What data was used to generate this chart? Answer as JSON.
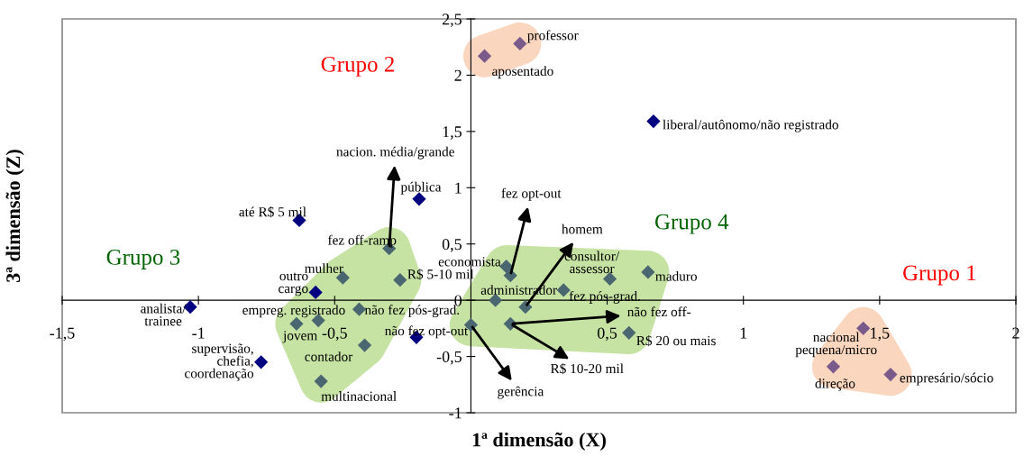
{
  "chart_data": {
    "type": "scatter",
    "xlabel": "1ª dimensão (X)",
    "ylabel": "3ª dimensão (Z)",
    "xlim": [
      -1.5,
      2
    ],
    "ylim": [
      -1,
      2.5
    ],
    "xticks": [
      {
        "value": -1.5,
        "label": "-1,5"
      },
      -1,
      {
        "value": -0.5,
        "label": "-0,5"
      },
      {
        "value": 0.5,
        "label": "0,5"
      },
      1,
      {
        "value": 1.5,
        "label": "1,5"
      },
      2
    ],
    "yticks": [
      -1,
      {
        "value": -0.5,
        "label": "-0,5"
      },
      0,
      {
        "value": 0.5,
        "label": "0,5"
      },
      1,
      {
        "value": 1.5,
        "label": "1,5"
      },
      2,
      {
        "value": 2.5,
        "label": "2,5"
      }
    ],
    "grid": false,
    "marker": "diamond",
    "legend": false,
    "series": [
      {
        "color": "#7a5a8a",
        "x": [
          1.44,
          1.33,
          1.54
        ],
        "values": [
          -0.25,
          -0.59,
          -0.66
        ],
        "value_labels": [
          "nacional\npequena/micro",
          "direção",
          "empresário/sócio"
        ]
      },
      {
        "color": "#7a5a8a",
        "x": [
          0.18,
          0.05
        ],
        "values": [
          2.28,
          2.17
        ],
        "value_labels": [
          "professor",
          "aposentado"
        ]
      },
      {
        "color": "#000080",
        "x": [
          0.67,
          -0.63,
          -0.19,
          -0.57,
          -1.03,
          -0.77,
          -0.2
        ],
        "values": [
          1.59,
          0.71,
          0.9,
          0.07,
          -0.06,
          -0.55,
          -0.33
        ],
        "value_labels": [
          "liberal/autônomo/não registrado",
          "até R$ 5 mil",
          "pública",
          "outro\ncargo",
          "analista/\ntrainee",
          "supervisão,\nchefia,\ncoordenação",
          "não fez opt-out"
        ]
      },
      {
        "color": "#4a6670",
        "x": [
          -0.3,
          -0.47,
          -0.26,
          -0.64,
          -0.56,
          -0.41,
          -0.39,
          -0.55
        ],
        "values": [
          0.46,
          0.2,
          0.18,
          -0.21,
          -0.18,
          -0.08,
          -0.4,
          -0.72
        ],
        "value_labels": [
          "fez off-ramp",
          "mulher",
          "R$ 5-10 mil",
          "empreg. registrado",
          "jovem",
          "não fez pós-grad.",
          "contador",
          "multinacional"
        ]
      },
      {
        "color": "#4a6670",
        "x": [
          0.13,
          0.145,
          0.09,
          0.34,
          0.2,
          0.145,
          0.51,
          0.65,
          0.58,
          0.0
        ],
        "values": [
          0.3,
          0.22,
          0.0,
          0.09,
          -0.06,
          -0.21,
          0.19,
          0.25,
          -0.29,
          -0.22
        ],
        "value_labels": [
          "economista",
          null,
          "administrador",
          "fez pós-grad.",
          null,
          null,
          "consultor/\nassessor",
          "maduro",
          "R$ 20 ou mais",
          null
        ]
      }
    ],
    "annotations": [
      "Grupo 1",
      "Grupo 2",
      "Grupo 3",
      "Grupo 4",
      {
        "text": "nacion. média/grande",
        "x": -0.3,
        "y": 0.46
      },
      {
        "text": "fez opt-out",
        "x": 0.145,
        "y": 0.22
      },
      {
        "text": "homem",
        "x": 0.2,
        "y": -0.06
      },
      {
        "text": "não fez off-",
        "x": 0.145,
        "y": -0.21
      },
      {
        "text": "R$ 10-20 mil",
        "x": 0.145,
        "y": -0.21
      },
      {
        "text": "gerência",
        "x": 0.0,
        "y": -0.22
      }
    ]
  }
}
